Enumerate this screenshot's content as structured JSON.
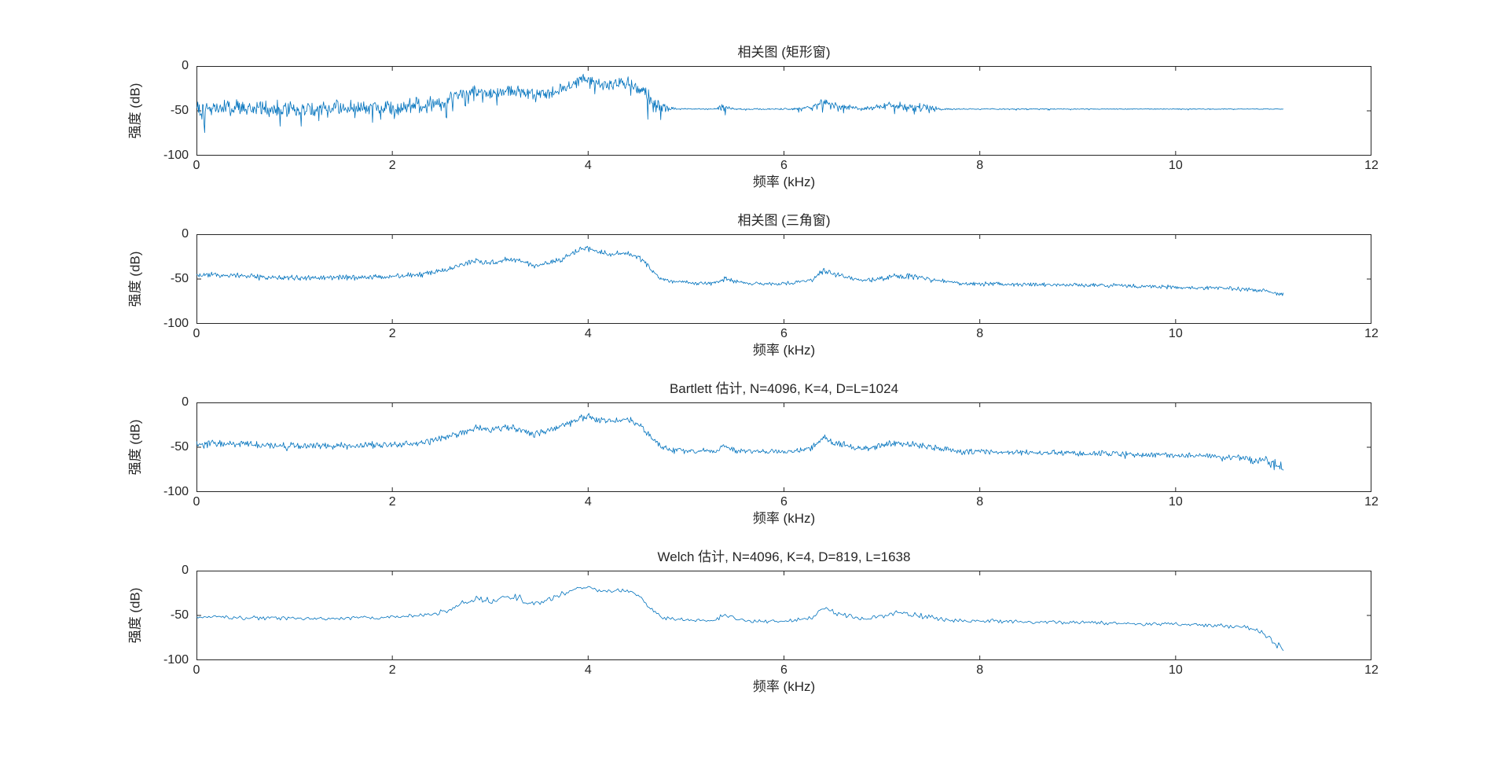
{
  "figure": {
    "background": "#ffffff",
    "line_color": "#0072BD",
    "axis_color": "#262626",
    "text_color": "#262626"
  },
  "chart_data": [
    {
      "type": "line",
      "title": "相关图 (矩形窗)",
      "xlabel": "频率 (kHz)",
      "ylabel": "强度 (dB)",
      "xlim": [
        0,
        12
      ],
      "ylim": [
        -100,
        0
      ],
      "xticks": [
        0,
        2,
        4,
        6,
        8,
        10,
        12
      ],
      "yticks": [
        0,
        -50,
        -100
      ],
      "grid": false,
      "legend": "none",
      "series": [
        {
          "seed": 101,
          "points": 1600,
          "spike": 1.8,
          "x": [
            0,
            0.3,
            0.8,
            1.2,
            1.6,
            2.0,
            2.3,
            2.5,
            2.7,
            2.85,
            3.0,
            3.15,
            3.3,
            3.45,
            3.6,
            3.75,
            3.9,
            4.0,
            4.1,
            4.25,
            4.4,
            4.55,
            4.65,
            4.75,
            4.9,
            5.1,
            5.3,
            5.4,
            5.5,
            5.7,
            5.9,
            6.1,
            6.3,
            6.4,
            6.5,
            6.65,
            6.8,
            7.0,
            7.15,
            7.3,
            7.45,
            7.6,
            7.8,
            8.0,
            8.4,
            8.8,
            9.2,
            9.6,
            10.0,
            10.4,
            10.7,
            10.9,
            11.1
          ],
          "y": [
            -46,
            -46,
            -47,
            -47,
            -47,
            -47,
            -44,
            -40,
            -33,
            -27,
            -31,
            -27,
            -29,
            -34,
            -31,
            -26,
            -17,
            -14,
            -19,
            -21,
            -19,
            -27,
            -38,
            -47,
            -48,
            -48,
            -48,
            -45,
            -48,
            -48,
            -48,
            -48,
            -46,
            -40,
            -43,
            -46,
            -48,
            -45,
            -44,
            -45,
            -46,
            -48,
            -48,
            -48,
            -48,
            -48,
            -48,
            -48,
            -48,
            -48,
            -48,
            -48,
            -48
          ],
          "noise": [
            12,
            12,
            12,
            12,
            12,
            12,
            12,
            11,
            10,
            10,
            10,
            10,
            10,
            10,
            10,
            9,
            8,
            8,
            9,
            9,
            9,
            10,
            11,
            9,
            1,
            1,
            1,
            5,
            1,
            1,
            1,
            1.5,
            3,
            7,
            6,
            4,
            2,
            6,
            6,
            6,
            5,
            2,
            0.8,
            0.8,
            0.7,
            0.7,
            0.6,
            0.6,
            0.6,
            0.5,
            0.5,
            0.5,
            0.5
          ]
        }
      ]
    },
    {
      "type": "line",
      "title": "相关图 (三角窗)",
      "xlabel": "频率 (kHz)",
      "ylabel": "强度 (dB)",
      "xlim": [
        0,
        12
      ],
      "ylim": [
        -100,
        0
      ],
      "xticks": [
        0,
        2,
        4,
        6,
        8,
        10,
        12
      ],
      "yticks": [
        0,
        -50,
        -100
      ],
      "grid": false,
      "legend": "none",
      "series": [
        {
          "seed": 202,
          "points": 1300,
          "spike": 0.5,
          "x": [
            0,
            0.3,
            0.8,
            1.2,
            1.6,
            2.0,
            2.3,
            2.5,
            2.7,
            2.85,
            3.0,
            3.15,
            3.3,
            3.45,
            3.6,
            3.75,
            3.9,
            4.0,
            4.1,
            4.25,
            4.4,
            4.55,
            4.65,
            4.75,
            4.9,
            5.1,
            5.3,
            5.4,
            5.5,
            5.7,
            5.9,
            6.1,
            6.3,
            6.4,
            6.5,
            6.65,
            6.8,
            7.0,
            7.15,
            7.3,
            7.45,
            7.6,
            7.8,
            8.0,
            8.4,
            8.8,
            9.2,
            9.6,
            10.0,
            10.4,
            10.7,
            10.9,
            11.1
          ],
          "y": [
            -45,
            -46,
            -48,
            -49,
            -48,
            -47,
            -45,
            -41,
            -35,
            -29,
            -32,
            -28,
            -30,
            -35,
            -32,
            -27,
            -18,
            -15,
            -20,
            -22,
            -20,
            -28,
            -40,
            -50,
            -53,
            -54,
            -54,
            -49,
            -53,
            -55,
            -55,
            -54,
            -50,
            -40,
            -44,
            -48,
            -52,
            -49,
            -46,
            -47,
            -49,
            -52,
            -55,
            -55,
            -56,
            -56,
            -57,
            -58,
            -59,
            -60,
            -61,
            -63,
            -67
          ],
          "noise": [
            4,
            4,
            4,
            4,
            4,
            4,
            4,
            4,
            4,
            4,
            4,
            4,
            4,
            4,
            4,
            4,
            4,
            4,
            4,
            4,
            4,
            4,
            4,
            3,
            3,
            3,
            3,
            4,
            3,
            3,
            3,
            3,
            4,
            5,
            4,
            4,
            3,
            4,
            4,
            4,
            4,
            3,
            3,
            3,
            3,
            3,
            3,
            3,
            3,
            3,
            3,
            3,
            3
          ]
        }
      ]
    },
    {
      "type": "line",
      "title": "Bartlett 估计, N=4096, K=4, D=L=1024",
      "xlabel": "频率 (kHz)",
      "ylabel": "强度 (dB)",
      "xlim": [
        0,
        12
      ],
      "ylim": [
        -100,
        0
      ],
      "xticks": [
        0,
        2,
        4,
        6,
        8,
        10,
        12
      ],
      "yticks": [
        0,
        -50,
        -100
      ],
      "grid": false,
      "legend": "none",
      "series": [
        {
          "seed": 303,
          "points": 1300,
          "spike": 0.7,
          "x": [
            0,
            0.3,
            0.8,
            1.2,
            1.6,
            2.0,
            2.3,
            2.5,
            2.7,
            2.85,
            3.0,
            3.15,
            3.3,
            3.45,
            3.6,
            3.75,
            3.9,
            4.0,
            4.1,
            4.25,
            4.4,
            4.55,
            4.65,
            4.75,
            4.9,
            5.1,
            5.3,
            5.4,
            5.5,
            5.7,
            5.9,
            6.1,
            6.3,
            6.4,
            6.5,
            6.65,
            6.8,
            7.0,
            7.15,
            7.3,
            7.45,
            7.6,
            7.8,
            8.0,
            8.4,
            8.8,
            9.2,
            9.6,
            10.0,
            10.4,
            10.7,
            10.9,
            11.1
          ],
          "y": [
            -47,
            -46,
            -48,
            -49,
            -48,
            -47,
            -45,
            -41,
            -34,
            -28,
            -31,
            -27,
            -30,
            -35,
            -31,
            -26,
            -17,
            -14,
            -19,
            -21,
            -19,
            -27,
            -40,
            -50,
            -53,
            -54,
            -54,
            -48,
            -53,
            -55,
            -55,
            -54,
            -50,
            -39,
            -44,
            -48,
            -52,
            -48,
            -45,
            -47,
            -49,
            -52,
            -55,
            -55,
            -56,
            -56,
            -57,
            -58,
            -59,
            -60,
            -62,
            -65,
            -71
          ],
          "noise": [
            6,
            5,
            5,
            5,
            5,
            5,
            5,
            5,
            5,
            5,
            5,
            5,
            5,
            5,
            5,
            5,
            5,
            5,
            5,
            5,
            5,
            5,
            5,
            4,
            4,
            4,
            4,
            5,
            4,
            4,
            4,
            4,
            5,
            6,
            5,
            5,
            4,
            5,
            5,
            5,
            5,
            4,
            4,
            4,
            4,
            4,
            4,
            4,
            4,
            4,
            5,
            7,
            9
          ]
        }
      ]
    },
    {
      "type": "line",
      "title": "Welch 估计, N=4096, K=4, D=819, L=1638",
      "xlabel": "频率 (kHz)",
      "ylabel": "强度 (dB)",
      "xlim": [
        0,
        12
      ],
      "ylim": [
        -100,
        0
      ],
      "xticks": [
        0,
        2,
        4,
        6,
        8,
        10,
        12
      ],
      "yticks": [
        0,
        -50,
        -100
      ],
      "grid": false,
      "legend": "none",
      "series": [
        {
          "seed": 404,
          "points": 700,
          "spike": 0.3,
          "x": [
            0,
            0.3,
            0.8,
            1.2,
            1.6,
            2.0,
            2.3,
            2.5,
            2.7,
            2.85,
            3.0,
            3.15,
            3.3,
            3.45,
            3.6,
            3.75,
            3.9,
            4.0,
            4.1,
            4.25,
            4.4,
            4.55,
            4.65,
            4.75,
            4.9,
            5.1,
            5.3,
            5.4,
            5.5,
            5.7,
            5.9,
            6.1,
            6.3,
            6.4,
            6.5,
            6.65,
            6.8,
            7.0,
            7.15,
            7.3,
            7.45,
            7.6,
            7.8,
            8.0,
            8.4,
            8.8,
            9.2,
            9.6,
            10.0,
            10.4,
            10.7,
            10.9,
            11.1
          ],
          "y": [
            -52,
            -52,
            -53,
            -54,
            -53,
            -52,
            -50,
            -46,
            -38,
            -32,
            -34,
            -28,
            -31,
            -38,
            -33,
            -25,
            -20,
            -19,
            -22,
            -23,
            -21,
            -30,
            -44,
            -52,
            -55,
            -56,
            -56,
            -48,
            -54,
            -57,
            -57,
            -56,
            -52,
            -40,
            -46,
            -50,
            -54,
            -50,
            -47,
            -49,
            -51,
            -54,
            -56,
            -56,
            -57,
            -58,
            -58,
            -59,
            -60,
            -61,
            -63,
            -70,
            -88
          ],
          "noise": [
            3,
            3,
            3,
            3,
            3,
            3,
            3,
            4,
            5,
            5,
            5,
            5,
            5,
            5,
            5,
            4,
            3,
            3,
            3,
            3,
            3,
            4,
            5,
            3,
            3,
            3,
            3,
            4,
            3,
            3,
            3,
            3,
            4,
            4,
            4,
            4,
            3,
            4,
            4,
            4,
            4,
            3,
            3,
            3,
            3,
            3,
            3,
            3,
            3,
            3,
            4,
            5,
            5
          ]
        }
      ]
    }
  ]
}
